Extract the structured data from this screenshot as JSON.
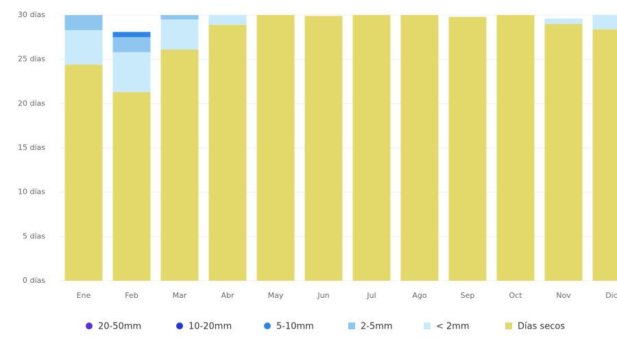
{
  "chart_data": {
    "type": "bar",
    "stacked": true,
    "categories": [
      "Ene",
      "Feb",
      "Mar",
      "Abr",
      "May",
      "Jun",
      "Jul",
      "Ago",
      "Sep",
      "Oct",
      "Nov",
      "Dic"
    ],
    "series": [
      {
        "name": "20-50mm",
        "color": "#5b2fd8",
        "values": [
          0,
          0,
          0,
          0,
          0,
          0,
          0,
          0,
          0,
          0,
          0,
          0
        ]
      },
      {
        "name": "10-20mm",
        "color": "#2236dc",
        "values": [
          0,
          0,
          0,
          0,
          0,
          0,
          0,
          0,
          0,
          0,
          0,
          0
        ]
      },
      {
        "name": "5-10mm",
        "color": "#2e86e2",
        "values": [
          0,
          0.6,
          0,
          0,
          0,
          0,
          0,
          0,
          0,
          0,
          0,
          0
        ]
      },
      {
        "name": "2-5mm",
        "color": "#8ec6f0",
        "values": [
          1.7,
          1.7,
          0.5,
          0,
          0,
          0,
          0,
          0,
          0,
          0,
          0,
          0
        ]
      },
      {
        "name": "< 2mm",
        "color": "#c8eafa",
        "values": [
          3.9,
          4.5,
          3.4,
          1.1,
          0,
          0,
          0,
          0,
          0,
          0,
          0.6,
          1.6
        ]
      },
      {
        "name": "Días secos",
        "color": "#e2d96a",
        "values": [
          24.4,
          21.3,
          26.1,
          28.9,
          30,
          29.9,
          30,
          30,
          29.8,
          30,
          29.0,
          28.4
        ]
      }
    ],
    "ylim": [
      0,
      30
    ],
    "yticks": [
      {
        "value": 0,
        "label": "0 días"
      },
      {
        "value": 5,
        "label": "5 días"
      },
      {
        "value": 10,
        "label": "10 días"
      },
      {
        "value": 15,
        "label": "15 días"
      },
      {
        "value": 20,
        "label": "20 días"
      },
      {
        "value": 25,
        "label": "25 días"
      },
      {
        "value": 30,
        "label": "30 días"
      }
    ],
    "grid": true
  }
}
